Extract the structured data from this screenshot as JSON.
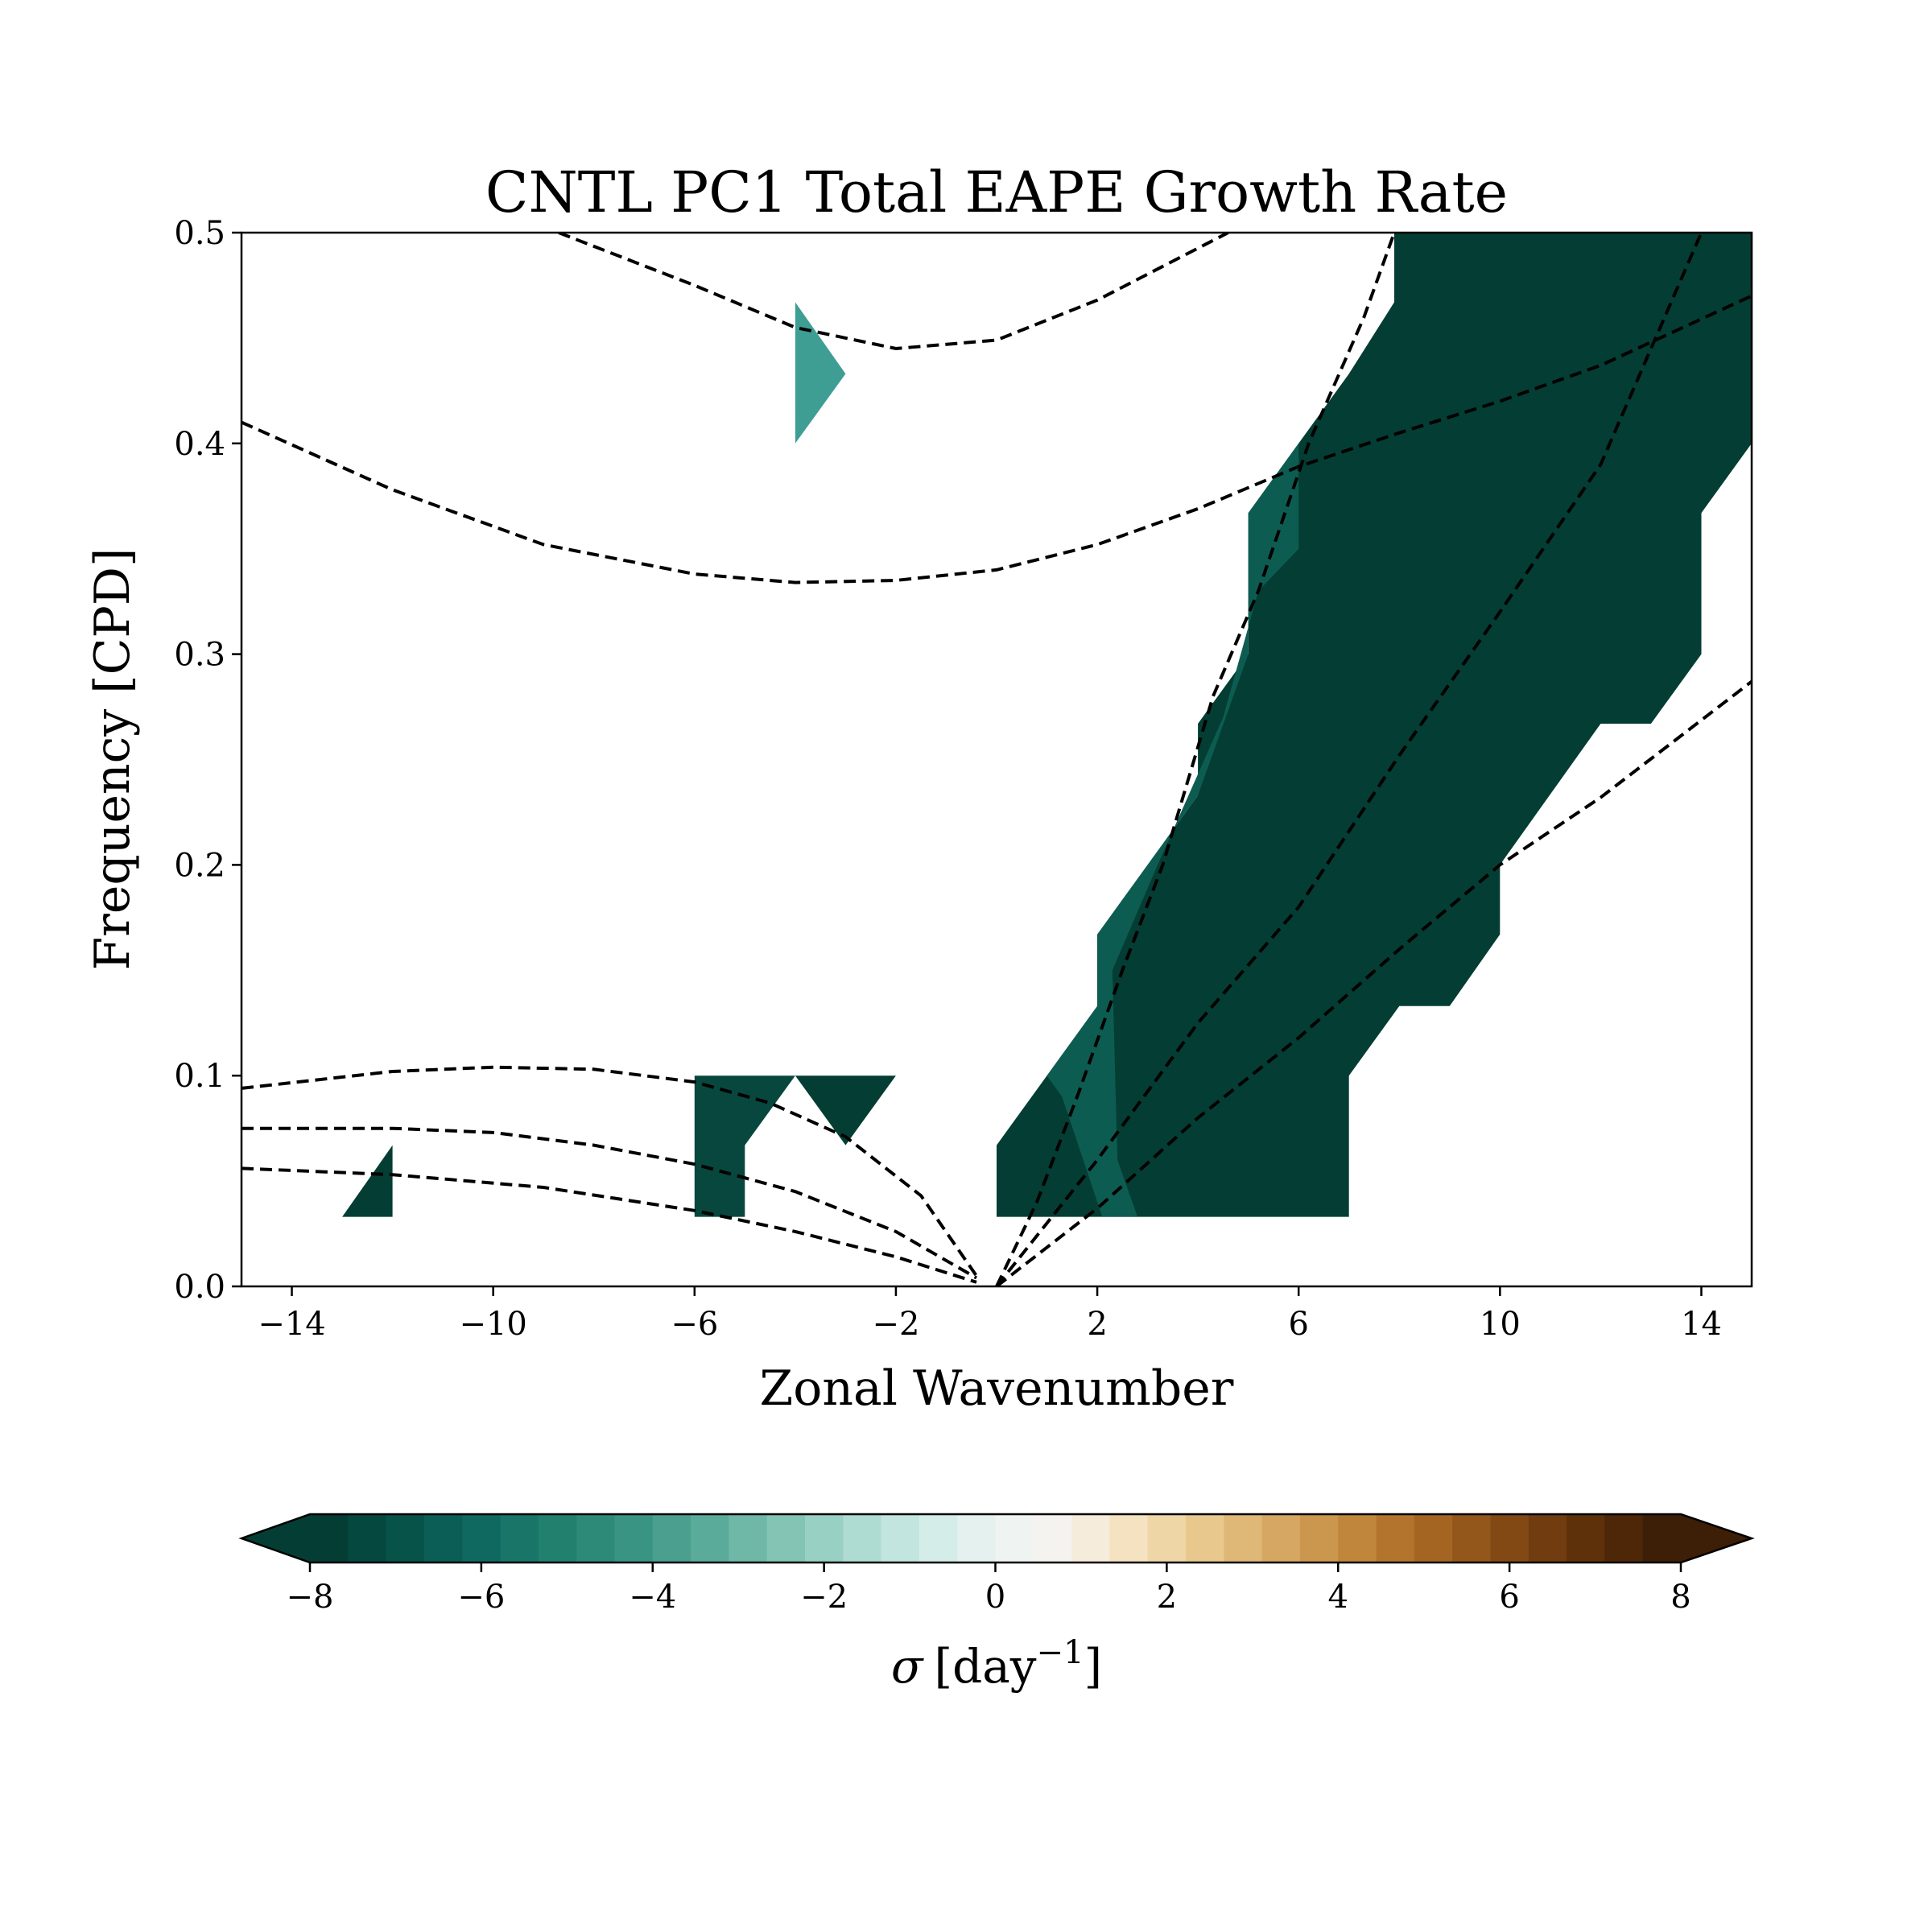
{
  "chart_data": {
    "type": "heatmap",
    "title": "CNTL PC1 Total EAPE Growth Rate",
    "xlabel": "Zonal Wavenumber",
    "ylabel": "Frequency [CPD]",
    "xlim": [
      -15,
      15
    ],
    "ylim": [
      0,
      0.5
    ],
    "xticks": [
      -14,
      -10,
      -6,
      -2,
      2,
      6,
      10,
      14
    ],
    "xtick_labels": [
      "−14",
      "−10",
      "−6",
      "−2",
      "2",
      "6",
      "10",
      "14"
    ],
    "yticks": [
      0.0,
      0.1,
      0.2,
      0.3,
      0.4,
      0.5
    ],
    "ytick_labels": [
      "0.0",
      "0.1",
      "0.2",
      "0.3",
      "0.4",
      "0.5"
    ],
    "filled_regions": [
      {
        "value": -9,
        "color": "#043d33",
        "polygon": [
          [
            7.9,
            0.5
          ],
          [
            15,
            0.5
          ],
          [
            15,
            0.4
          ],
          [
            14,
            0.367
          ],
          [
            14,
            0.3
          ],
          [
            13,
            0.267
          ],
          [
            12,
            0.267
          ],
          [
            10,
            0.2
          ],
          [
            10,
            0.167
          ],
          [
            9,
            0.133
          ],
          [
            8,
            0.133
          ],
          [
            7,
            0.1
          ],
          [
            7,
            0.033
          ],
          [
            0,
            0.033
          ],
          [
            0,
            0.067
          ],
          [
            1,
            0.1
          ],
          [
            2,
            0.133
          ],
          [
            2,
            0.167
          ],
          [
            3,
            0.2
          ],
          [
            4,
            0.233
          ],
          [
            4,
            0.267
          ],
          [
            5,
            0.3
          ],
          [
            5,
            0.367
          ],
          [
            6,
            0.4
          ],
          [
            7,
            0.433
          ],
          [
            7.9,
            0.467
          ]
        ]
      },
      {
        "value": -8,
        "color": "#0d5c52",
        "polygon": [
          [
            1,
            0.1
          ],
          [
            2,
            0.133
          ],
          [
            2,
            0.167
          ],
          [
            3,
            0.2
          ],
          [
            4,
            0.233
          ],
          [
            5,
            0.3
          ],
          [
            5,
            0.367
          ],
          [
            6,
            0.4
          ],
          [
            6,
            0.35
          ],
          [
            5.2,
            0.33
          ],
          [
            4.5,
            0.27
          ],
          [
            3.2,
            0.2
          ],
          [
            2.3,
            0.15
          ],
          [
            2.4,
            0.06
          ],
          [
            2.8,
            0.033
          ],
          [
            2.1,
            0.033
          ],
          [
            1.3,
            0.09
          ]
        ]
      },
      {
        "value": -9,
        "color": "#043d33",
        "polygon": [
          [
            -13,
            0.033
          ],
          [
            -12,
            0.033
          ],
          [
            -12,
            0.067
          ]
        ]
      },
      {
        "value": -8.5,
        "color": "#07473e",
        "polygon": [
          [
            -6,
            0.033
          ],
          [
            -5,
            0.033
          ],
          [
            -5,
            0.067
          ],
          [
            -4,
            0.1
          ],
          [
            -6,
            0.1
          ]
        ]
      },
      {
        "value": -9,
        "color": "#043d33",
        "polygon": [
          [
            -4,
            0.1
          ],
          [
            -2,
            0.1
          ],
          [
            -3,
            0.067
          ]
        ]
      },
      {
        "value": -4.5,
        "color": "#3f9e94",
        "polygon": [
          [
            -4,
            0.4
          ],
          [
            -3,
            0.433
          ],
          [
            -4,
            0.467
          ]
        ]
      }
    ],
    "dashed_curves": [
      [
        [
          -8.7,
          0.5
        ],
        [
          -6,
          0.475
        ],
        [
          -4,
          0.455
        ],
        [
          -2,
          0.445
        ],
        [
          0,
          0.449
        ],
        [
          2,
          0.468
        ],
        [
          4.6,
          0.5
        ]
      ],
      [
        [
          -15,
          0.41
        ],
        [
          -12,
          0.378
        ],
        [
          -9,
          0.352
        ],
        [
          -6,
          0.338
        ],
        [
          -4,
          0.334
        ],
        [
          -2,
          0.335
        ],
        [
          0,
          0.34
        ],
        [
          2,
          0.352
        ],
        [
          4,
          0.369
        ],
        [
          6,
          0.389
        ],
        [
          8,
          0.405
        ],
        [
          10,
          0.42
        ],
        [
          12,
          0.437
        ],
        [
          15,
          0.47
        ]
      ],
      [
        [
          -15,
          0.094
        ],
        [
          -12,
          0.102
        ],
        [
          -10,
          0.104
        ],
        [
          -8,
          0.103
        ],
        [
          -6,
          0.097
        ],
        [
          -4.5,
          0.087
        ],
        [
          -3,
          0.071
        ],
        [
          -1.5,
          0.043
        ],
        [
          -0.4,
          0.005
        ]
      ],
      [
        [
          -15,
          0.075
        ],
        [
          -12,
          0.075
        ],
        [
          -10,
          0.073
        ],
        [
          -8,
          0.067
        ],
        [
          -6,
          0.058
        ],
        [
          -4,
          0.045
        ],
        [
          -2,
          0.026
        ],
        [
          -0.4,
          0.004
        ]
      ],
      [
        [
          -15,
          0.056
        ],
        [
          -12,
          0.053
        ],
        [
          -9,
          0.047
        ],
        [
          -6,
          0.036
        ],
        [
          -4,
          0.026
        ],
        [
          -2,
          0.014
        ],
        [
          -0.4,
          0.002
        ]
      ],
      [
        [
          0,
          0
        ],
        [
          0.8,
          0.04
        ],
        [
          1.6,
          0.09
        ],
        [
          2.5,
          0.15
        ],
        [
          3.3,
          0.2
        ],
        [
          4.3,
          0.28
        ],
        [
          5.2,
          0.33
        ],
        [
          6.2,
          0.4
        ],
        [
          7.3,
          0.46
        ],
        [
          7.9,
          0.5
        ]
      ],
      [
        [
          0,
          0
        ],
        [
          2,
          0.06
        ],
        [
          4,
          0.125
        ],
        [
          6,
          0.18
        ],
        [
          8,
          0.252
        ],
        [
          10,
          0.32
        ],
        [
          12,
          0.39
        ],
        [
          14,
          0.5
        ]
      ],
      [
        [
          0,
          0
        ],
        [
          2,
          0.037
        ],
        [
          4,
          0.08
        ],
        [
          6,
          0.118
        ],
        [
          8,
          0.16
        ],
        [
          10,
          0.2
        ],
        [
          12,
          0.232
        ],
        [
          15,
          0.287
        ]
      ]
    ],
    "colorbar": {
      "label_symbol": "σ",
      "label_unit": "[day",
      "label_exponent": "−1",
      "label_close": "]",
      "vmin": -8,
      "vmax": 8,
      "extend": "both",
      "ticks": [
        -8,
        -6,
        -4,
        -2,
        0,
        2,
        4,
        6,
        8
      ],
      "tick_labels": [
        "−8",
        "−6",
        "−4",
        "−2",
        "0",
        "2",
        "4",
        "6",
        "8"
      ],
      "colors": [
        "#043d33",
        "#05483f",
        "#07534a",
        "#0b5e55",
        "#106960",
        "#187568",
        "#22806f",
        "#2d8a79",
        "#3a9484",
        "#4a9f8f",
        "#5bab9a",
        "#6fb8a7",
        "#83c4b5",
        "#98d0c4",
        "#aedbd2",
        "#c3e5df",
        "#d5ede9",
        "#e4f1ef",
        "#eff4f3",
        "#f5f3ef",
        "#f6ecdc",
        "#f4e2c1",
        "#efd6a6",
        "#e8c88d",
        "#dfb877",
        "#d5a762",
        "#cb974e",
        "#c0863c",
        "#b3752e",
        "#a46523",
        "#93561b",
        "#824915",
        "#703c10",
        "#5e310b",
        "#4d2708",
        "#3d1e06"
      ]
    }
  }
}
